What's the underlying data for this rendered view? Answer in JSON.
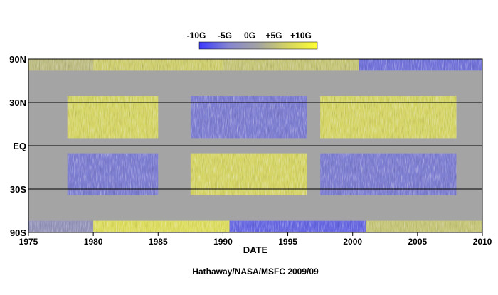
{
  "chart_data": {
    "type": "heatmap",
    "title": "",
    "xlabel": "DATE",
    "ylabel": "",
    "x_range": [
      1975,
      2010
    ],
    "x_ticks": [
      1975,
      1980,
      1985,
      1990,
      1995,
      2000,
      2005,
      2010
    ],
    "y_range": [
      -90,
      90
    ],
    "y_ticks": [
      {
        "value": 90,
        "label": "90N"
      },
      {
        "value": 30,
        "label": "30N"
      },
      {
        "value": 0,
        "label": "EQ"
      },
      {
        "value": -30,
        "label": "30S"
      },
      {
        "value": -90,
        "label": "90S"
      }
    ],
    "y_scale": "sine-latitude",
    "grid": "horizontal lines at 30N, EQ, 30S",
    "colorbar": {
      "labels": [
        "-10G",
        "-5G",
        "0G",
        "+5G",
        "+10G"
      ],
      "values": [
        -10,
        -5,
        0,
        5,
        10
      ],
      "colors": [
        "#3a3aff",
        "#8585d0",
        "#a3a3a3",
        "#d5d560",
        "#ffff33"
      ],
      "placement": "top-center"
    },
    "features": [
      {
        "x": [
          1978.0,
          1985.0
        ],
        "lat": [
          5,
          35
        ],
        "value": 6
      },
      {
        "x": [
          1978.0,
          1985.0
        ],
        "lat": [
          -35,
          -5
        ],
        "value": -6
      },
      {
        "x": [
          1987.5,
          1996.5
        ],
        "lat": [
          5,
          35
        ],
        "value": -6
      },
      {
        "x": [
          1987.5,
          1996.5
        ],
        "lat": [
          -35,
          -5
        ],
        "value": 6
      },
      {
        "x": [
          1997.5,
          2008.0
        ],
        "lat": [
          5,
          35
        ],
        "value": 6
      },
      {
        "x": [
          1997.5,
          2008.0
        ],
        "lat": [
          -35,
          -5
        ],
        "value": -6
      },
      {
        "x": [
          1975.0,
          1980.0
        ],
        "lat": [
          60,
          90
        ],
        "value": 3
      },
      {
        "x": [
          1980.0,
          1990.0
        ],
        "lat": [
          60,
          90
        ],
        "value": 5
      },
      {
        "x": [
          1990.0,
          2000.5
        ],
        "lat": [
          60,
          90
        ],
        "value": 4
      },
      {
        "x": [
          2000.5,
          2010.0
        ],
        "lat": [
          60,
          90
        ],
        "value": -7
      },
      {
        "x": [
          1975.0,
          1980.0
        ],
        "lat": [
          -90,
          -60
        ],
        "value": -3
      },
      {
        "x": [
          1980.0,
          1990.5
        ],
        "lat": [
          -90,
          -60
        ],
        "value": 7
      },
      {
        "x": [
          1990.5,
          2001.0
        ],
        "lat": [
          -90,
          -60
        ],
        "value": -8
      },
      {
        "x": [
          2001.0,
          2010.0
        ],
        "lat": [
          -90,
          -60
        ],
        "value": 4
      }
    ],
    "footer": "Hathaway/NASA/MSFC 2009/09"
  }
}
